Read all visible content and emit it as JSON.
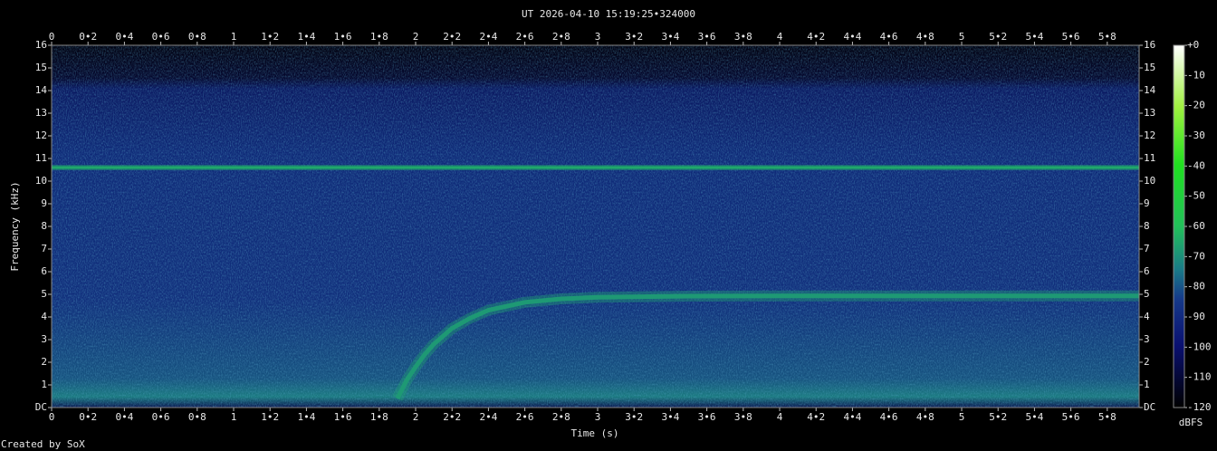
{
  "chart_data": {
    "type": "spectrogram",
    "title": "UT 2026-04-10 15:19:25•324000",
    "x_label": "Time (s)",
    "y_label": "Frequency (kHz)",
    "colorbar_label": "dBFS",
    "footer": "Created by SoX",
    "xlim": [
      0,
      5.975
    ],
    "ylim": [
      0,
      16
    ],
    "clim": [
      -120,
      0
    ],
    "xticks": [
      0,
      {
        "value": 0.2,
        "label": "0•2"
      },
      {
        "value": 0.4,
        "label": "0•4"
      },
      {
        "value": 0.6,
        "label": "0•6"
      },
      {
        "value": 0.8,
        "label": "0•8"
      },
      1,
      {
        "value": 1.2,
        "label": "1•2"
      },
      {
        "value": 1.4,
        "label": "1•4"
      },
      {
        "value": 1.6,
        "label": "1•6"
      },
      {
        "value": 1.8,
        "label": "1•8"
      },
      2,
      {
        "value": 2.2,
        "label": "2•2"
      },
      {
        "value": 2.4,
        "label": "2•4"
      },
      {
        "value": 2.6,
        "label": "2•6"
      },
      {
        "value": 2.8,
        "label": "2•8"
      },
      3,
      {
        "value": 3.2,
        "label": "3•2"
      },
      {
        "value": 3.4,
        "label": "3•4"
      },
      {
        "value": 3.6,
        "label": "3•6"
      },
      {
        "value": 3.8,
        "label": "3•8"
      },
      4,
      {
        "value": 4.2,
        "label": "4•2"
      },
      {
        "value": 4.4,
        "label": "4•4"
      },
      {
        "value": 4.6,
        "label": "4•6"
      },
      {
        "value": 4.8,
        "label": "4•8"
      },
      5,
      {
        "value": 5.2,
        "label": "5•2"
      },
      {
        "value": 5.4,
        "label": "5•4"
      },
      {
        "value": 5.6,
        "label": "5•6"
      },
      {
        "value": 5.8,
        "label": "5•8"
      }
    ],
    "yticks": [
      {
        "value": 0,
        "label": "DC"
      },
      1,
      2,
      3,
      4,
      5,
      6,
      7,
      8,
      9,
      10,
      11,
      12,
      13,
      14,
      15,
      16
    ],
    "cticks": [
      {
        "value": 0,
        "label": "+0"
      },
      -10,
      -20,
      -30,
      -40,
      -50,
      -60,
      -70,
      -80,
      -90,
      -100,
      -110,
      -120
    ],
    "tones": [
      {
        "x": [
          0,
          5.975
        ],
        "y": [
          10.6,
          10.6
        ],
        "level": -65
      },
      {
        "x": [
          1.9,
          1.95,
          2.0,
          2.05,
          2.1,
          2.2,
          2.3,
          2.4,
          2.6,
          2.8,
          3.0,
          3.5,
          4.0,
          5.975
        ],
        "y": [
          0.4,
          1.2,
          1.8,
          2.35,
          2.8,
          3.5,
          3.95,
          4.3,
          4.65,
          4.8,
          4.87,
          4.92,
          4.93,
          4.93
        ],
        "level": -68
      }
    ]
  }
}
